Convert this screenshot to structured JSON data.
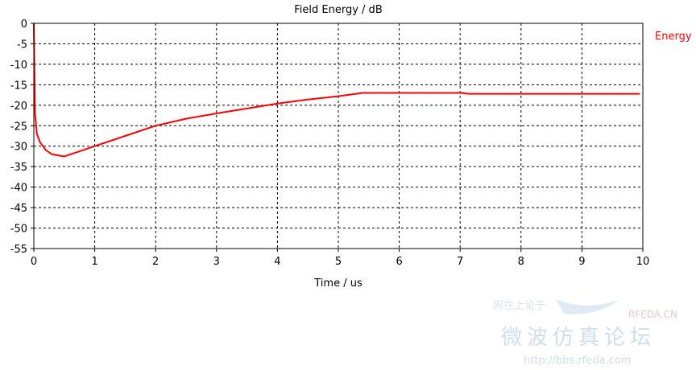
{
  "chart_data": {
    "type": "line",
    "title": "Field Energy / dB",
    "xlabel": "Time / us",
    "ylabel": "",
    "xlim": [
      0,
      10
    ],
    "ylim": [
      -55,
      0
    ],
    "xticks": [
      0,
      1,
      2,
      3,
      4,
      5,
      6,
      7,
      8,
      9,
      10
    ],
    "yticks": [
      0,
      -5,
      -10,
      -15,
      -20,
      -25,
      -30,
      -35,
      -40,
      -45,
      -50,
      -55
    ],
    "grid": true,
    "grid_style": "dashed",
    "legend_position": "top-right",
    "series": [
      {
        "name": "Energy",
        "color": "#ff0000",
        "x": [
          0,
          0.02,
          0.05,
          0.1,
          0.2,
          0.3,
          0.5,
          0.7,
          1.0,
          1.5,
          2.0,
          2.5,
          3.0,
          3.5,
          4.0,
          4.5,
          5.0,
          5.4,
          6.0,
          6.5,
          7.0,
          7.15,
          7.5,
          8.0,
          9.0,
          9.95
        ],
        "y": [
          0,
          -22,
          -27,
          -29,
          -31,
          -32,
          -32.5,
          -31.5,
          -30,
          -27.5,
          -25,
          -23.3,
          -22,
          -20.8,
          -19.6,
          -18.6,
          -17.8,
          -17,
          -17,
          -17,
          -17,
          -17.2,
          -17.2,
          -17.2,
          -17.2,
          -17.2
        ]
      }
    ]
  },
  "watermark": {
    "site": "RFEDA.CN",
    "forum": "微波仿真论坛",
    "url": "http://bbs.rfeda.com",
    "slogan": "网在上论于"
  }
}
